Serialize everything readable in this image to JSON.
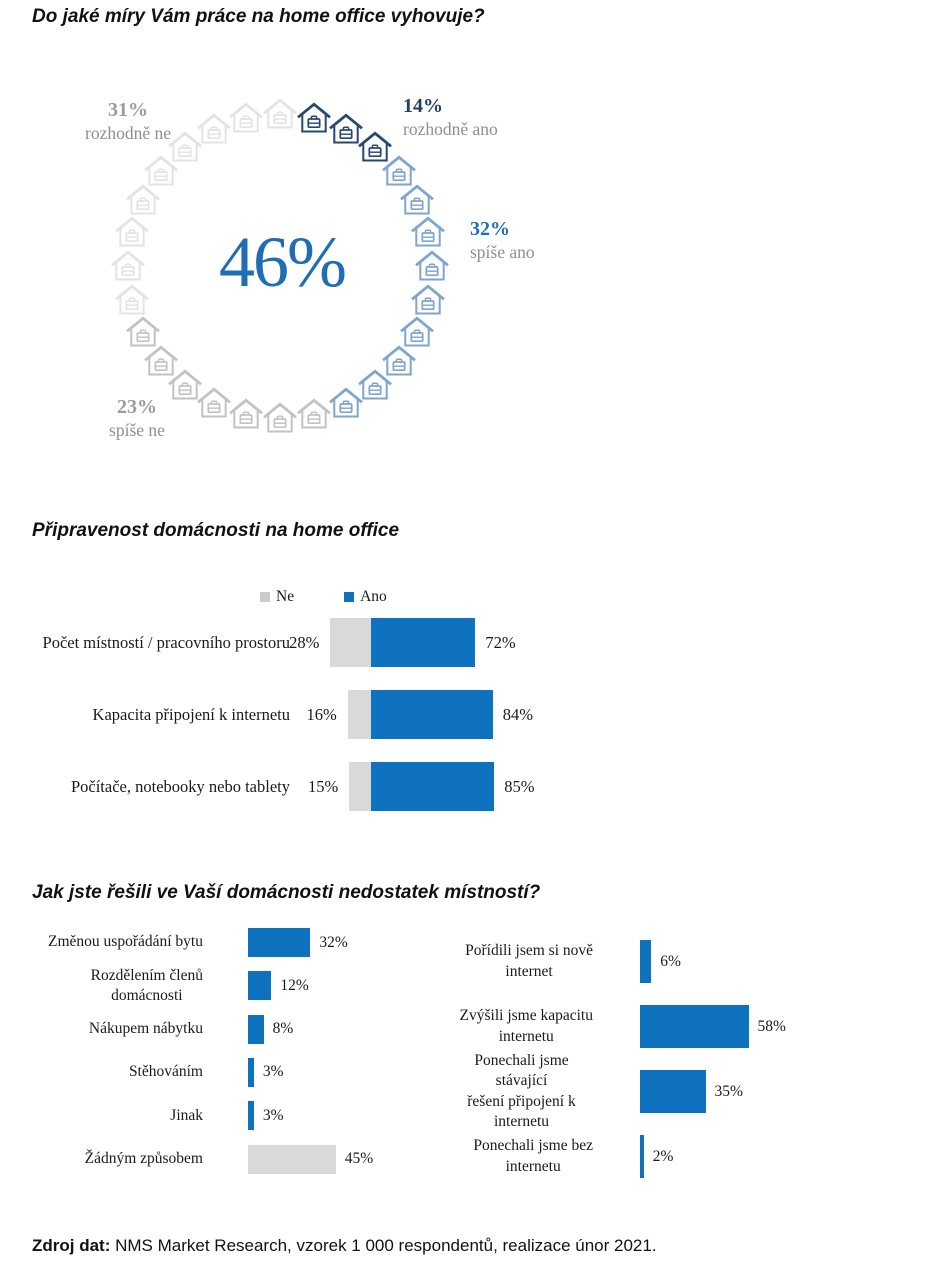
{
  "page": {
    "titles": {
      "q1": "Do jaké míry Vám práce na home office vyhovuje?",
      "q2": "Připravenost domácnosti na home office",
      "q3": "Jak jste řešili ve Vaší domácnosti nedostatek místností?"
    },
    "source": {
      "label": "Zdroj dat:",
      "text": " NMS Market Research, vzorek 1 000 respondentů, realizace únor 2021."
    }
  },
  "colors": {
    "accent_blue": "#0E72BE",
    "bar_gray": "#D9D9D9",
    "legend_gray": "#CACACA",
    "house_navy": "#25496E",
    "house_blue": "#7CA5CF",
    "house_gray_medium": "#C2C2C2",
    "house_gray_light": "#E3E3E3",
    "text_gray": "#8F8F8F",
    "value_blue": "#1F6EB4",
    "value_navy": "#223F5F",
    "text_dark": "#1A1A1A"
  },
  "chart_data": [
    {
      "type": "pie",
      "subtype": "pictorial-donut-of-house-icons",
      "title": "Do jaké míry Vám práce na home office vyhovuje?",
      "center_value": "46%",
      "center_value_note": "share shown large in donut center",
      "total_icons": 28,
      "legend_position": "around-donut",
      "segments": [
        {
          "label": "rozhodně ano",
          "value": 14,
          "display": "14%",
          "icons": 3,
          "color": "#25496E",
          "display_color": "navy"
        },
        {
          "label": "spíše ano",
          "value": 32,
          "display": "32%",
          "icons": 9,
          "color": "#7CA5CF",
          "display_color": "blue"
        },
        {
          "label": "spíše ne",
          "value": 23,
          "display": "23%",
          "icons": 7,
          "color": "#C2C2C2",
          "display_color": "gray"
        },
        {
          "label": "rozhodně ne",
          "value": 31,
          "display": "31%",
          "icons": 9,
          "color": "#E3E3E3",
          "display_color": "gray"
        }
      ]
    },
    {
      "type": "bar",
      "subtype": "horizontal-diverging-stacked",
      "title": "Připravenost domácnosti na home office",
      "legend": [
        {
          "name": "Ne",
          "color": "#CACACA"
        },
        {
          "name": "Ano",
          "color": "#0E72BE"
        }
      ],
      "categories": [
        "Počet místností / pracovního prostoru",
        "Kapacita připojení k internetu",
        "Počítače, notebooky nebo tablety"
      ],
      "series": [
        {
          "name": "Ne",
          "values": [
            28,
            16,
            15
          ],
          "displays": [
            "28%",
            "16%",
            "15%"
          ],
          "color": "#D9D9D9"
        },
        {
          "name": "Ano",
          "values": [
            72,
            84,
            85
          ],
          "displays": [
            "72%",
            "84%",
            "85%"
          ],
          "color": "#0E72BE"
        }
      ],
      "xlim": [
        0,
        100
      ],
      "grid": false
    },
    {
      "type": "bar",
      "subtype": "horizontal",
      "position": "left-panel",
      "title": "Jak jste řešili ve Vaší domácnosti nedostatek místností?",
      "categories": [
        "Změnou uspořádání bytu",
        "Rozdělením členů\ndomácnosti",
        "Nákupem nábytku",
        "Stěhováním",
        "Jinak",
        "Žádným způsobem"
      ],
      "values": [
        32,
        12,
        8,
        3,
        3,
        45
      ],
      "displays": [
        "32%",
        "12%",
        "8%",
        "3%",
        "3%",
        "45%"
      ],
      "bar_colors": [
        "#0E72BE",
        "#0E72BE",
        "#0E72BE",
        "#0E72BE",
        "#0E72BE",
        "#D9D9D9"
      ],
      "xlim": [
        0,
        100
      ],
      "grid": false
    },
    {
      "type": "bar",
      "subtype": "horizontal",
      "position": "right-panel",
      "title": "Jak jste řešili ve Vaší domácnosti nedostatek místností?",
      "categories": [
        "Pořídili jsem si nově\ninternet",
        "Zvýšili jsme kapacitu\ninternetu",
        "Ponechali jsme stávající\nřešení připojení k\ninternetu",
        "Ponechali jsme bez\ninternetu"
      ],
      "values": [
        6,
        58,
        35,
        2
      ],
      "displays": [
        "6%",
        "58%",
        "35%",
        "2%"
      ],
      "bar_colors": [
        "#0E72BE",
        "#0E72BE",
        "#0E72BE",
        "#0E72BE"
      ],
      "xlim": [
        0,
        100
      ],
      "grid": false
    }
  ]
}
